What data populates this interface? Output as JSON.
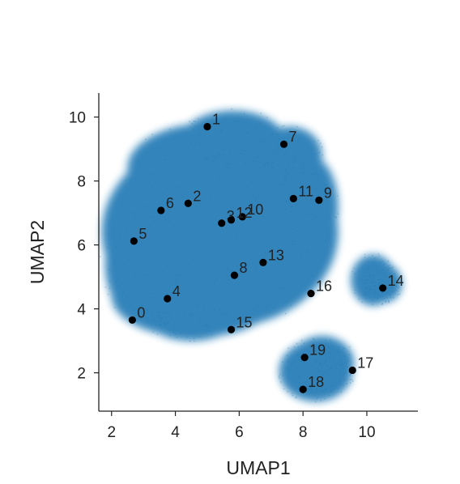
{
  "chart_data": {
    "type": "scatter",
    "xlabel": "UMAP1",
    "ylabel": "UMAP2",
    "xlim": [
      1.6,
      11.6
    ],
    "ylim": [
      0.8,
      10.75
    ],
    "xticks": [
      2,
      4,
      6,
      8,
      10
    ],
    "yticks": [
      2,
      4,
      6,
      8,
      10
    ],
    "xtick_labels": [
      "2",
      "4",
      "6",
      "8",
      "10"
    ],
    "ytick_labels": [
      "2",
      "4",
      "6",
      "8",
      "10"
    ],
    "grid": false,
    "background_color": "#1f77b4",
    "point_color": "#000000",
    "points": [
      {
        "label": "0",
        "x": 2.65,
        "y": 3.65
      },
      {
        "label": "1",
        "x": 5.0,
        "y": 9.7
      },
      {
        "label": "2",
        "x": 4.4,
        "y": 7.3
      },
      {
        "label": "3",
        "x": 5.45,
        "y": 6.68
      },
      {
        "label": "4",
        "x": 3.75,
        "y": 4.32
      },
      {
        "label": "5",
        "x": 2.7,
        "y": 6.12
      },
      {
        "label": "6",
        "x": 3.55,
        "y": 7.08
      },
      {
        "label": "7",
        "x": 7.4,
        "y": 9.15
      },
      {
        "label": "8",
        "x": 5.85,
        "y": 5.05
      },
      {
        "label": "9",
        "x": 8.5,
        "y": 7.4
      },
      {
        "label": "10",
        "x": 6.1,
        "y": 6.88
      },
      {
        "label": "11",
        "x": 7.7,
        "y": 7.45
      },
      {
        "label": "12",
        "x": 5.75,
        "y": 6.78
      },
      {
        "label": "13",
        "x": 6.75,
        "y": 5.45
      },
      {
        "label": "14",
        "x": 10.5,
        "y": 4.65
      },
      {
        "label": "15",
        "x": 5.75,
        "y": 3.35
      },
      {
        "label": "16",
        "x": 8.25,
        "y": 4.48
      },
      {
        "label": "17",
        "x": 9.55,
        "y": 2.08
      },
      {
        "label": "18",
        "x": 8.0,
        "y": 1.48
      },
      {
        "label": "19",
        "x": 8.05,
        "y": 2.48
      }
    ]
  }
}
